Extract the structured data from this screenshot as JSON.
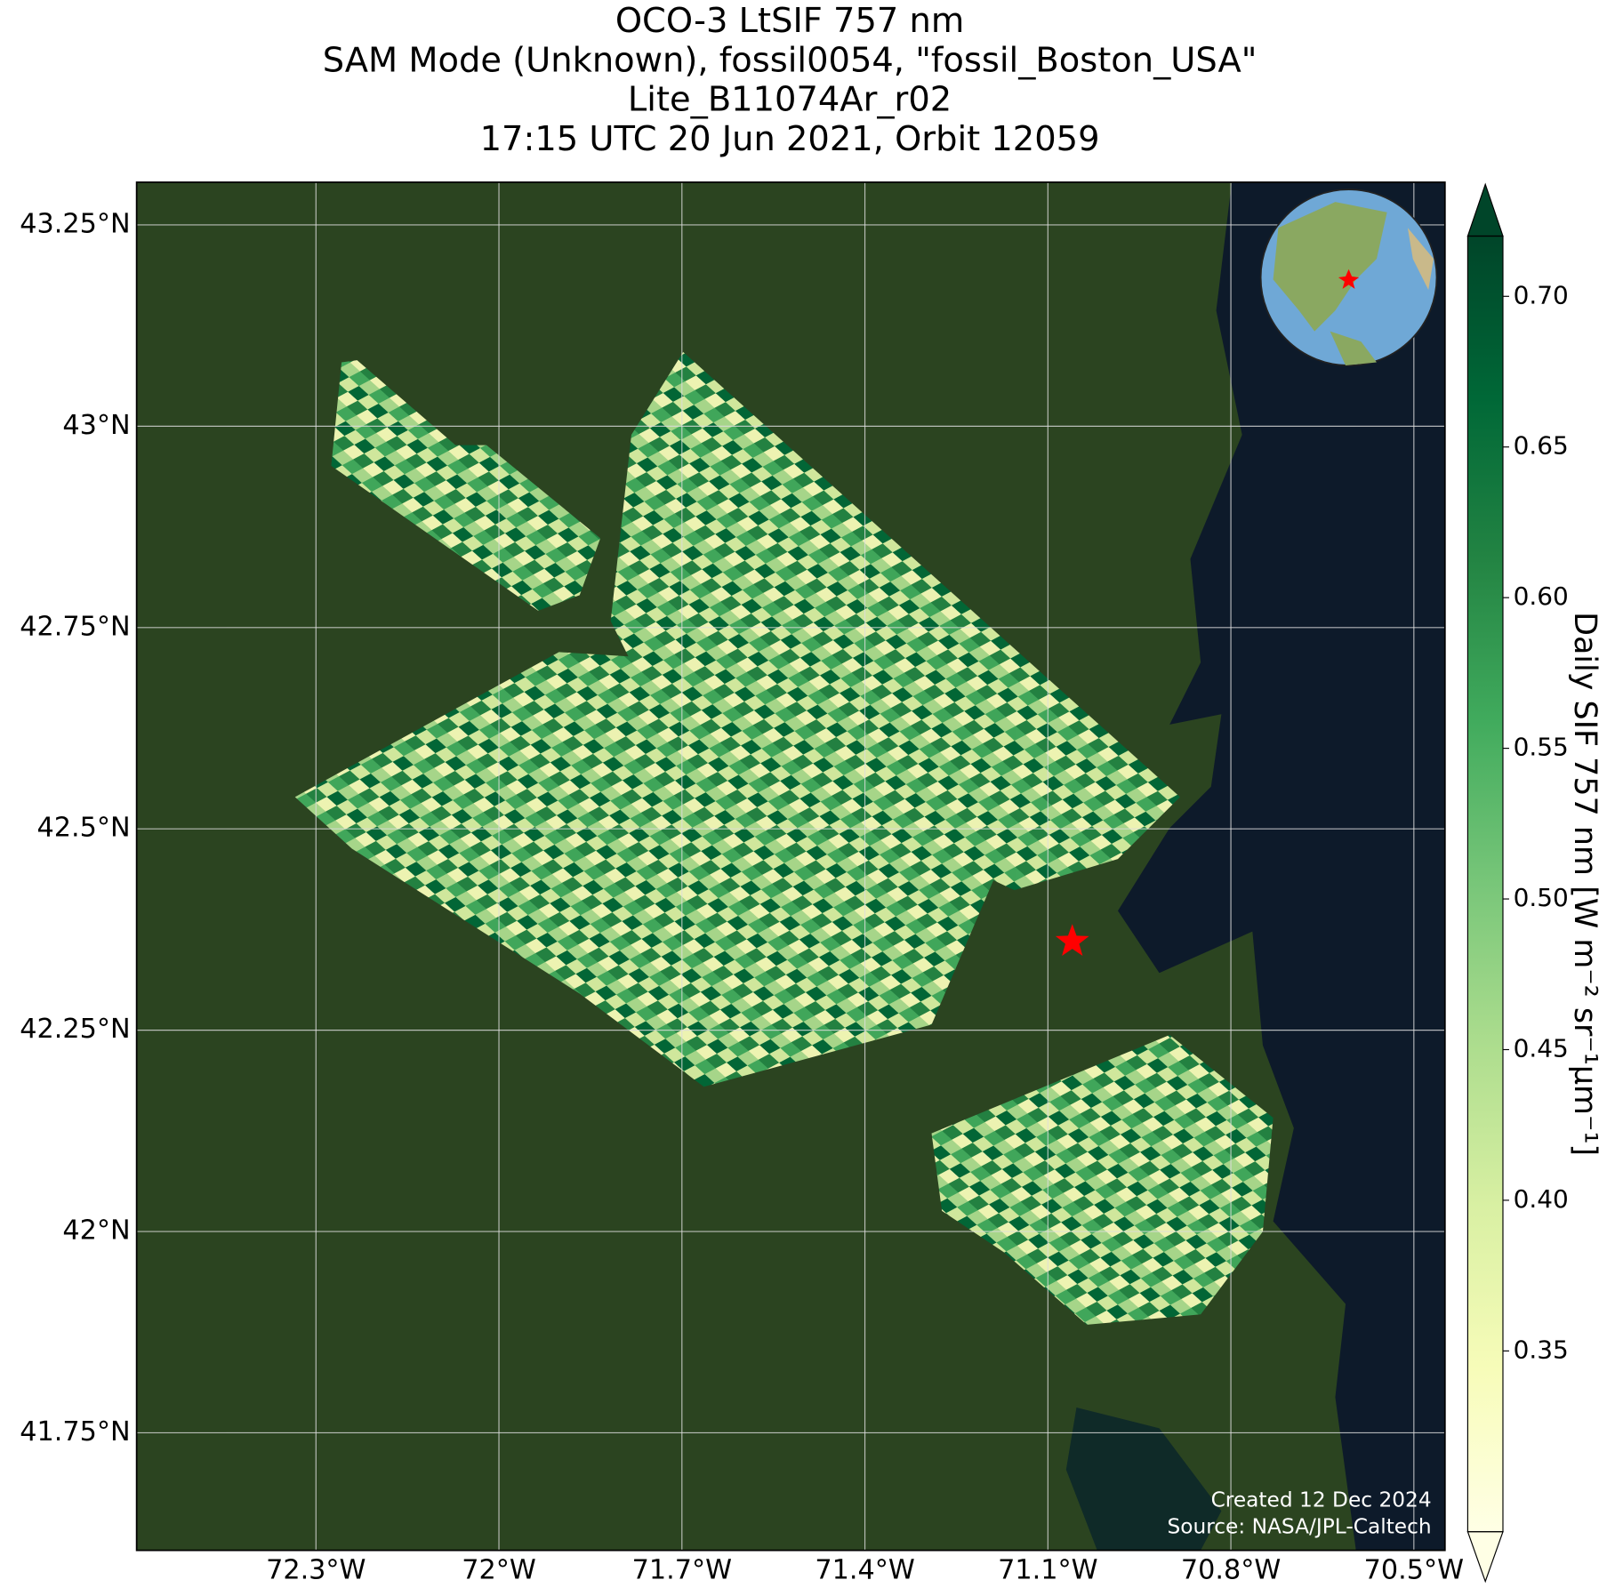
{
  "chart_data": {
    "type": "map",
    "title": [
      "OCO-3 LtSIF 757 nm",
      "SAM Mode (Unknown), fossil0054, \"fossil_Boston_USA\"",
      "Lite_B11074Ar_r02",
      "17:15 UTC 20 Jun 2021, Orbit 12059"
    ],
    "xlim": [
      -72.594,
      -70.449
    ],
    "ylim": [
      41.604,
      43.303
    ],
    "xticks": [
      {
        "value": -72.3,
        "label": "72.3°W"
      },
      {
        "value": -72.0,
        "label": "72°W"
      },
      {
        "value": -71.7,
        "label": "71.7°W"
      },
      {
        "value": -71.4,
        "label": "71.4°W"
      },
      {
        "value": -71.1,
        "label": "71.1°W"
      },
      {
        "value": -70.8,
        "label": "70.8°W"
      },
      {
        "value": -70.5,
        "label": "70.5°W"
      }
    ],
    "yticks": [
      {
        "value": 41.75,
        "label": "41.75°N"
      },
      {
        "value": 42.0,
        "label": "42°N"
      },
      {
        "value": 42.25,
        "label": "42.25°N"
      },
      {
        "value": 42.5,
        "label": "42.5°N"
      },
      {
        "value": 42.75,
        "label": "42.75°N"
      },
      {
        "value": 43.0,
        "label": "43°N"
      },
      {
        "value": 43.25,
        "label": "43.25°N"
      }
    ],
    "grid": true,
    "target": {
      "lon": -71.06,
      "lat": 42.36,
      "color": "#ff0000"
    },
    "colorbar": {
      "label": "Daily SIF 757 nm [W m⁻² sr⁻¹µm⁻¹]",
      "clim": [
        0.29,
        0.72
      ],
      "ticks": [
        0.35,
        {
          "value": 0.4,
          "label": "0.40"
        },
        0.45,
        {
          "value": 0.5,
          "label": "0.50"
        },
        0.55,
        {
          "value": 0.6,
          "label": "0.60"
        },
        0.65,
        {
          "value": 0.7,
          "label": "0.70"
        }
      ],
      "colors": [
        "#ffffe5",
        "#f7fcb9",
        "#d9f0a3",
        "#addd8e",
        "#78c679",
        "#41ab5d",
        "#238443",
        "#006837",
        "#004529"
      ]
    },
    "credits": [
      "Created 12 Dec 2024",
      "Source: NASA/JPL-Caltech"
    ]
  }
}
